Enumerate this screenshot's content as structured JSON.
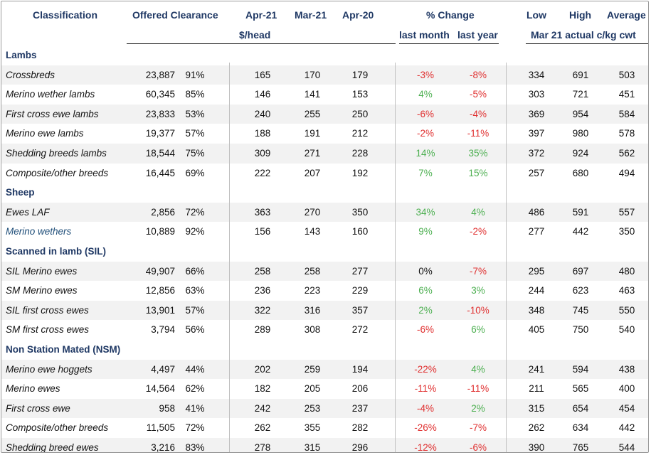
{
  "header": {
    "classification": "Classification",
    "offered_clearance": "Offered Clearance",
    "apr21": "Apr-21",
    "mar21": "Mar-21",
    "apr20": "Apr-20",
    "per_head": "$/head",
    "pct_change": "% Change",
    "last_month": "last month",
    "last_year": "last year",
    "low": "Low",
    "high": "High",
    "average": "Average",
    "mar21_actual": "Mar 21 actual c/kg cwt"
  },
  "rows": [
    {
      "type": "section",
      "label": "Lambs"
    },
    {
      "type": "data",
      "label": "Crossbreds",
      "offered": "23,887",
      "clearance": "91%",
      "apr21": "165",
      "mar21": "170",
      "apr20": "179",
      "last_month": "-3%",
      "last_year": "-8%",
      "low": "334",
      "high": "691",
      "average": "503"
    },
    {
      "type": "data",
      "label": "Merino wether lambs",
      "offered": "60,345",
      "clearance": "85%",
      "apr21": "146",
      "mar21": "141",
      "apr20": "153",
      "last_month": "4%",
      "last_year": "-5%",
      "low": "303",
      "high": "721",
      "average": "451"
    },
    {
      "type": "data",
      "label": "First cross ewe lambs",
      "offered": "23,833",
      "clearance": "53%",
      "apr21": "240",
      "mar21": "255",
      "apr20": "250",
      "last_month": "-6%",
      "last_year": "-4%",
      "low": "369",
      "high": "954",
      "average": "584"
    },
    {
      "type": "data",
      "label": "Merino ewe lambs",
      "offered": "19,377",
      "clearance": "57%",
      "apr21": "188",
      "mar21": "191",
      "apr20": "212",
      "last_month": "-2%",
      "last_year": "-11%",
      "low": "397",
      "high": "980",
      "average": "578"
    },
    {
      "type": "data",
      "label": "Shedding breeds lambs",
      "offered": "18,544",
      "clearance": "75%",
      "apr21": "309",
      "mar21": "271",
      "apr20": "228",
      "last_month": "14%",
      "last_year": "35%",
      "low": "372",
      "high": "924",
      "average": "562"
    },
    {
      "type": "data",
      "label": "Composite/other breeds",
      "offered": "16,445",
      "clearance": "69%",
      "apr21": "222",
      "mar21": "207",
      "apr20": "192",
      "last_month": "7%",
      "last_year": "15%",
      "low": "257",
      "high": "680",
      "average": "494"
    },
    {
      "type": "section",
      "label": "Sheep"
    },
    {
      "type": "data",
      "label": "Ewes LAF",
      "offered": "2,856",
      "clearance": "72%",
      "apr21": "363",
      "mar21": "270",
      "apr20": "350",
      "last_month": "34%",
      "last_year": "4%",
      "low": "486",
      "high": "591",
      "average": "557"
    },
    {
      "type": "data",
      "label": "Merino wethers",
      "blue": true,
      "offered": "10,889",
      "clearance": "92%",
      "apr21": "156",
      "mar21": "143",
      "apr20": "160",
      "last_month": "9%",
      "last_year": "-2%",
      "low": "277",
      "high": "442",
      "average": "350"
    },
    {
      "type": "section",
      "label": "Scanned in lamb (SIL)"
    },
    {
      "type": "data",
      "label": "SIL Merino ewes",
      "offered": "49,907",
      "clearance": "66%",
      "apr21": "258",
      "mar21": "258",
      "apr20": "277",
      "last_month": "0%",
      "last_year": "-7%",
      "low": "295",
      "high": "697",
      "average": "480"
    },
    {
      "type": "data",
      "label": "SM Merino ewes",
      "offered": "12,856",
      "clearance": "63%",
      "apr21": "236",
      "mar21": "223",
      "apr20": "229",
      "last_month": "6%",
      "last_year": "3%",
      "low": "244",
      "high": "623",
      "average": "463"
    },
    {
      "type": "data",
      "label": "SIL first cross ewes",
      "offered": "13,901",
      "clearance": "57%",
      "apr21": "322",
      "mar21": "316",
      "apr20": "357",
      "last_month": "2%",
      "last_year": "-10%",
      "low": "348",
      "high": "745",
      "average": "550"
    },
    {
      "type": "data",
      "label": "SM first cross ewes",
      "offered": "3,794",
      "clearance": "56%",
      "apr21": "289",
      "mar21": "308",
      "apr20": "272",
      "last_month": "-6%",
      "last_year": "6%",
      "low": "405",
      "high": "750",
      "average": "540"
    },
    {
      "type": "section",
      "label": "Non Station Mated (NSM)"
    },
    {
      "type": "data",
      "label": "Merino ewe hoggets",
      "offered": "4,497",
      "clearance": "44%",
      "apr21": "202",
      "mar21": "259",
      "apr20": "194",
      "last_month": "-22%",
      "last_year": "4%",
      "low": "241",
      "high": "594",
      "average": "438"
    },
    {
      "type": "data",
      "label": "Merino ewes",
      "offered": "14,564",
      "clearance": "62%",
      "apr21": "182",
      "mar21": "205",
      "apr20": "206",
      "last_month": "-11%",
      "last_year": "-11%",
      "low": "211",
      "high": "565",
      "average": "400"
    },
    {
      "type": "data",
      "label": "First cross ewe",
      "offered": "958",
      "clearance": "41%",
      "apr21": "242",
      "mar21": "253",
      "apr20": "237",
      "last_month": "-4%",
      "last_year": "2%",
      "low": "315",
      "high": "654",
      "average": "454"
    },
    {
      "type": "data",
      "label": "Composite/other breeds",
      "offered": "11,505",
      "clearance": "72%",
      "apr21": "262",
      "mar21": "355",
      "apr20": "282",
      "last_month": "-26%",
      "last_year": "-7%",
      "low": "262",
      "high": "634",
      "average": "442"
    },
    {
      "type": "data",
      "label": "Shedding breed ewes",
      "offered": "3,216",
      "clearance": "83%",
      "apr21": "278",
      "mar21": "315",
      "apr20": "296",
      "last_month": "-12%",
      "last_year": "-6%",
      "low": "390",
      "high": "765",
      "average": "544"
    }
  ],
  "colors": {
    "header_text": "#1f3864",
    "negative": "#e03030",
    "positive": "#4caf50",
    "row_shade": "#f2f2f2"
  }
}
